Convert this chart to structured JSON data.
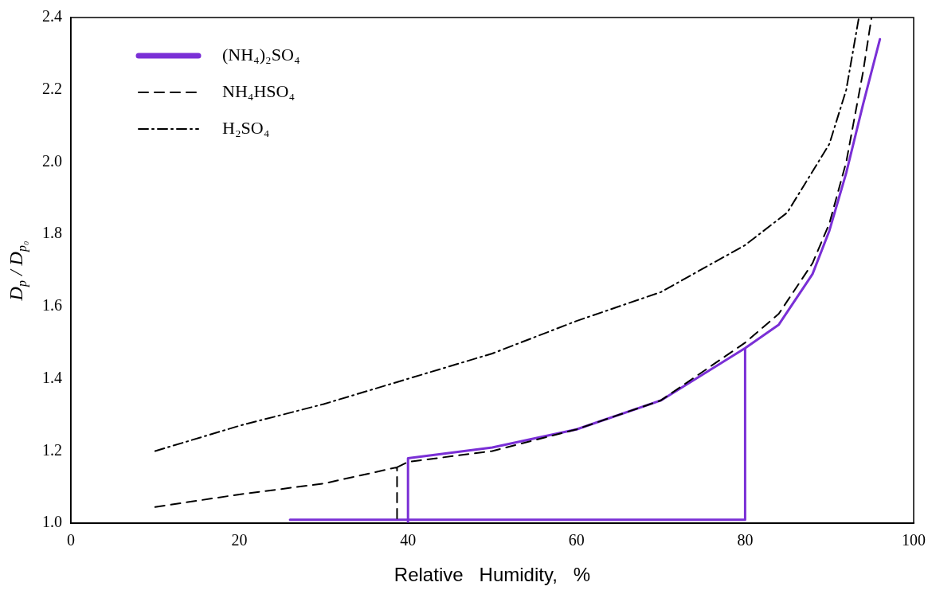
{
  "chart_data": {
    "type": "line",
    "xlabel": "Relative   Humidity,   %",
    "ylabel": "D$_{p}$ / D$_{p₀}$",
    "xlim": [
      0,
      100
    ],
    "xticks": [
      0,
      20,
      40,
      60,
      80,
      100
    ],
    "ylim": [
      1.0,
      2.4
    ],
    "yticks": [
      {
        "value": 1.0,
        "label": "1.0"
      },
      {
        "value": 1.2,
        "label": "1.2"
      },
      {
        "value": 1.4,
        "label": "1.4"
      },
      {
        "value": 1.6,
        "label": "1.6"
      },
      {
        "value": 1.8,
        "label": "1.8"
      },
      {
        "value": 2.0,
        "label": "2.0"
      },
      {
        "value": 2.2,
        "label": "2.2"
      },
      {
        "value": 2.4,
        "label": "2.4"
      }
    ],
    "grid": false,
    "legend": "top left",
    "marker": "none",
    "series": [
      {
        "name": "(NH₄)₂SO₄",
        "color": "#7a2fd6",
        "line_style": "solid",
        "x": [
          26,
          80,
          80,
          null,
          40,
          40,
          50,
          60,
          70,
          80,
          84,
          88,
          90,
          92,
          94,
          96
        ],
        "values": [
          1.01,
          1.01,
          1.485,
          null,
          1.0,
          1.18,
          1.21,
          1.26,
          1.34,
          1.485,
          1.55,
          1.69,
          1.81,
          1.97,
          2.16,
          2.34
        ]
      },
      {
        "name": "NH₄HSO₄",
        "color": "#000000",
        "line_style": "dashed",
        "x": [
          10,
          20,
          30,
          38.7,
          38.7,
          null,
          38.7,
          40,
          50,
          60,
          70,
          80,
          84,
          88,
          90,
          92,
          94,
          95
        ],
        "values": [
          1.045,
          1.08,
          1.11,
          1.155,
          1.0,
          null,
          1.155,
          1.17,
          1.2,
          1.26,
          1.34,
          1.5,
          1.58,
          1.72,
          1.83,
          2.0,
          2.25,
          2.4
        ]
      },
      {
        "name": "H₂SO₄",
        "color": "#000000",
        "line_style": "dashdot",
        "x": [
          10,
          20,
          30,
          40,
          50,
          60,
          70,
          80,
          85,
          90,
          92,
          93.5
        ],
        "values": [
          1.2,
          1.27,
          1.33,
          1.4,
          1.47,
          1.56,
          1.64,
          1.77,
          1.86,
          2.05,
          2.2,
          2.4
        ]
      }
    ]
  }
}
